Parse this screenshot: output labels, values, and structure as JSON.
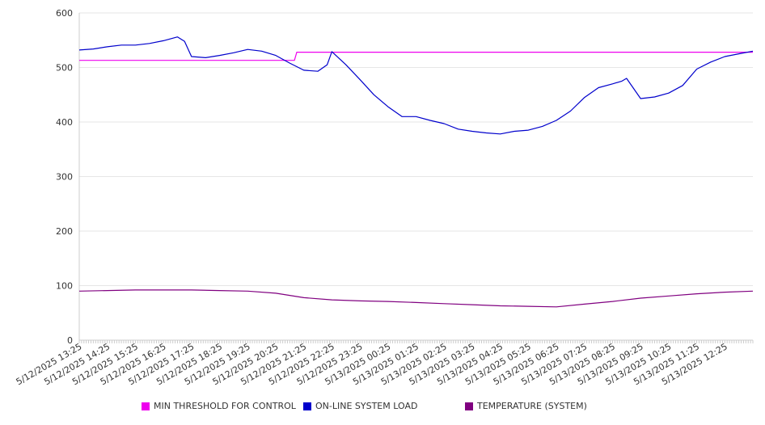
{
  "chart_data": {
    "type": "line",
    "y_ticks": [
      0,
      100,
      200,
      300,
      400,
      500,
      600
    ],
    "ylim": [
      0,
      600
    ],
    "grid": true,
    "legend_position": "bottom",
    "x_tick_labels": [
      "5/12/2025 13:25",
      "5/12/2025 14:25",
      "5/12/2025 15:25",
      "5/12/2025 16:25",
      "5/12/2025 17:25",
      "5/12/2025 18:25",
      "5/12/2025 19:25",
      "5/12/2025 20:25",
      "5/12/2025 21:25",
      "5/12/2025 22:25",
      "5/12/2025 23:25",
      "5/13/2025 00:25",
      "5/13/2025 01:25",
      "5/13/2025 02:25",
      "5/13/2025 03:25",
      "5/13/2025 04:25",
      "5/13/2025 05:25",
      "5/13/2025 06:25",
      "5/13/2025 07:25",
      "5/13/2025 08:25",
      "5/13/2025 09:25",
      "5/13/2025 10:25",
      "5/13/2025 11:25",
      "5/13/2025 12:25"
    ],
    "xlim": [
      "5/12/2025 13:25",
      "5/13/2025 13:25"
    ],
    "series": [
      {
        "name": "MIN THRESHOLD FOR CONTROL",
        "color": "#ee00ee",
        "x": [
          "5/12/2025 13:25",
          "5/12/2025 21:05",
          "5/12/2025 21:10",
          "5/13/2025 13:25"
        ],
        "values": [
          513,
          513,
          528,
          528
        ]
      },
      {
        "name": "ON-LINE SYSTEM LOAD",
        "color": "#0000cc",
        "x": [
          "5/12/2025 13:25",
          "5/12/2025 13:55",
          "5/12/2025 14:25",
          "5/12/2025 14:55",
          "5/12/2025 15:25",
          "5/12/2025 15:55",
          "5/12/2025 16:25",
          "5/12/2025 16:55",
          "5/12/2025 17:10",
          "5/12/2025 17:25",
          "5/12/2025 17:55",
          "5/12/2025 18:25",
          "5/12/2025 18:55",
          "5/12/2025 19:25",
          "5/12/2025 19:55",
          "5/12/2025 20:25",
          "5/12/2025 20:55",
          "5/12/2025 21:25",
          "5/12/2025 21:55",
          "5/12/2025 22:15",
          "5/12/2025 22:25",
          "5/12/2025 22:55",
          "5/12/2025 23:25",
          "5/12/2025 23:55",
          "5/13/2025 00:25",
          "5/13/2025 00:55",
          "5/13/2025 01:25",
          "5/13/2025 01:55",
          "5/13/2025 02:25",
          "5/13/2025 02:55",
          "5/13/2025 03:25",
          "5/13/2025 03:55",
          "5/13/2025 04:25",
          "5/13/2025 04:55",
          "5/13/2025 05:25",
          "5/13/2025 05:55",
          "5/13/2025 06:25",
          "5/13/2025 06:55",
          "5/13/2025 07:25",
          "5/13/2025 07:55",
          "5/13/2025 08:25",
          "5/13/2025 08:45",
          "5/13/2025 08:55",
          "5/13/2025 09:25",
          "5/13/2025 09:55",
          "5/13/2025 10:25",
          "5/13/2025 10:55",
          "5/13/2025 11:25",
          "5/13/2025 11:55",
          "5/13/2025 12:25",
          "5/13/2025 12:55",
          "5/13/2025 13:25"
        ],
        "values": [
          532,
          534,
          538,
          541,
          541,
          544,
          549,
          556,
          548,
          520,
          518,
          522,
          527,
          533,
          530,
          522,
          508,
          495,
          493,
          505,
          529,
          505,
          478,
          450,
          428,
          410,
          410,
          403,
          397,
          387,
          383,
          380,
          378,
          383,
          385,
          392,
          403,
          420,
          445,
          463,
          470,
          475,
          480,
          443,
          446,
          453,
          467,
          497,
          510,
          520,
          525,
          530
        ]
      },
      {
        "name": "TEMPERATURE (SYSTEM)",
        "color": "#800080",
        "x": [
          "5/12/2025 13:25",
          "5/12/2025 14:25",
          "5/12/2025 15:25",
          "5/12/2025 16:25",
          "5/12/2025 17:25",
          "5/12/2025 18:25",
          "5/12/2025 19:25",
          "5/12/2025 20:25",
          "5/12/2025 21:25",
          "5/12/2025 22:25",
          "5/12/2025 23:25",
          "5/13/2025 00:25",
          "5/13/2025 01:25",
          "5/13/2025 02:25",
          "5/13/2025 03:25",
          "5/13/2025 04:25",
          "5/13/2025 05:25",
          "5/13/2025 06:25",
          "5/13/2025 07:25",
          "5/13/2025 08:25",
          "5/13/2025 09:25",
          "5/13/2025 10:25",
          "5/13/2025 11:25",
          "5/13/2025 12:25",
          "5/13/2025 13:25"
        ],
        "values": [
          90,
          91,
          92,
          92,
          92,
          91,
          90,
          86,
          78,
          74,
          72,
          71,
          69,
          67,
          65,
          63,
          62,
          61,
          66,
          71,
          77,
          81,
          85,
          88,
          90
        ]
      }
    ]
  }
}
